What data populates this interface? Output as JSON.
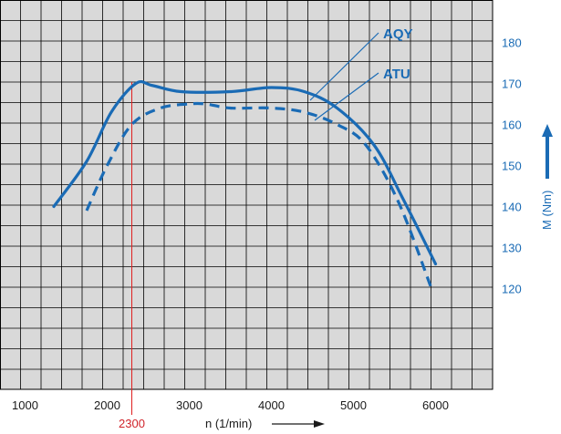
{
  "chart_data": {
    "type": "line",
    "xlabel": "n  (1/min)",
    "ylabel": "M (Nm)",
    "x_ticks": [
      "1000",
      "2000",
      "3000",
      "4000",
      "5000",
      "6000"
    ],
    "y_ticks": [
      "120",
      "130",
      "140",
      "150",
      "160",
      "170",
      "180"
    ],
    "xlim": [
      1000,
      6800
    ],
    "ylim": [
      85,
      190
    ],
    "grid": true,
    "reference_line": {
      "x": 2300,
      "label": "2300"
    },
    "series": [
      {
        "name": "AQY",
        "style": "solid",
        "x": [
          1350,
          1750,
          2050,
          2350,
          2550,
          2900,
          3500,
          4000,
          4400,
          4800,
          5250,
          5600,
          6000
        ],
        "y": [
          140,
          151,
          163,
          170,
          169.5,
          168,
          168,
          169,
          168,
          164,
          155,
          142,
          126
        ]
      },
      {
        "name": "ATU",
        "style": "dashed",
        "x": [
          1750,
          2000,
          2300,
          2650,
          3000,
          3200,
          3500,
          4000,
          4400,
          4800,
          5150,
          5550,
          5950
        ],
        "y": [
          139,
          150,
          160,
          164,
          165,
          165,
          164,
          164,
          163,
          160,
          155,
          141,
          120
        ]
      }
    ],
    "colors": {
      "line": "#1a6bb5",
      "grid": "#000000",
      "background": "#d9d9d9",
      "reference": "#e02020"
    }
  }
}
